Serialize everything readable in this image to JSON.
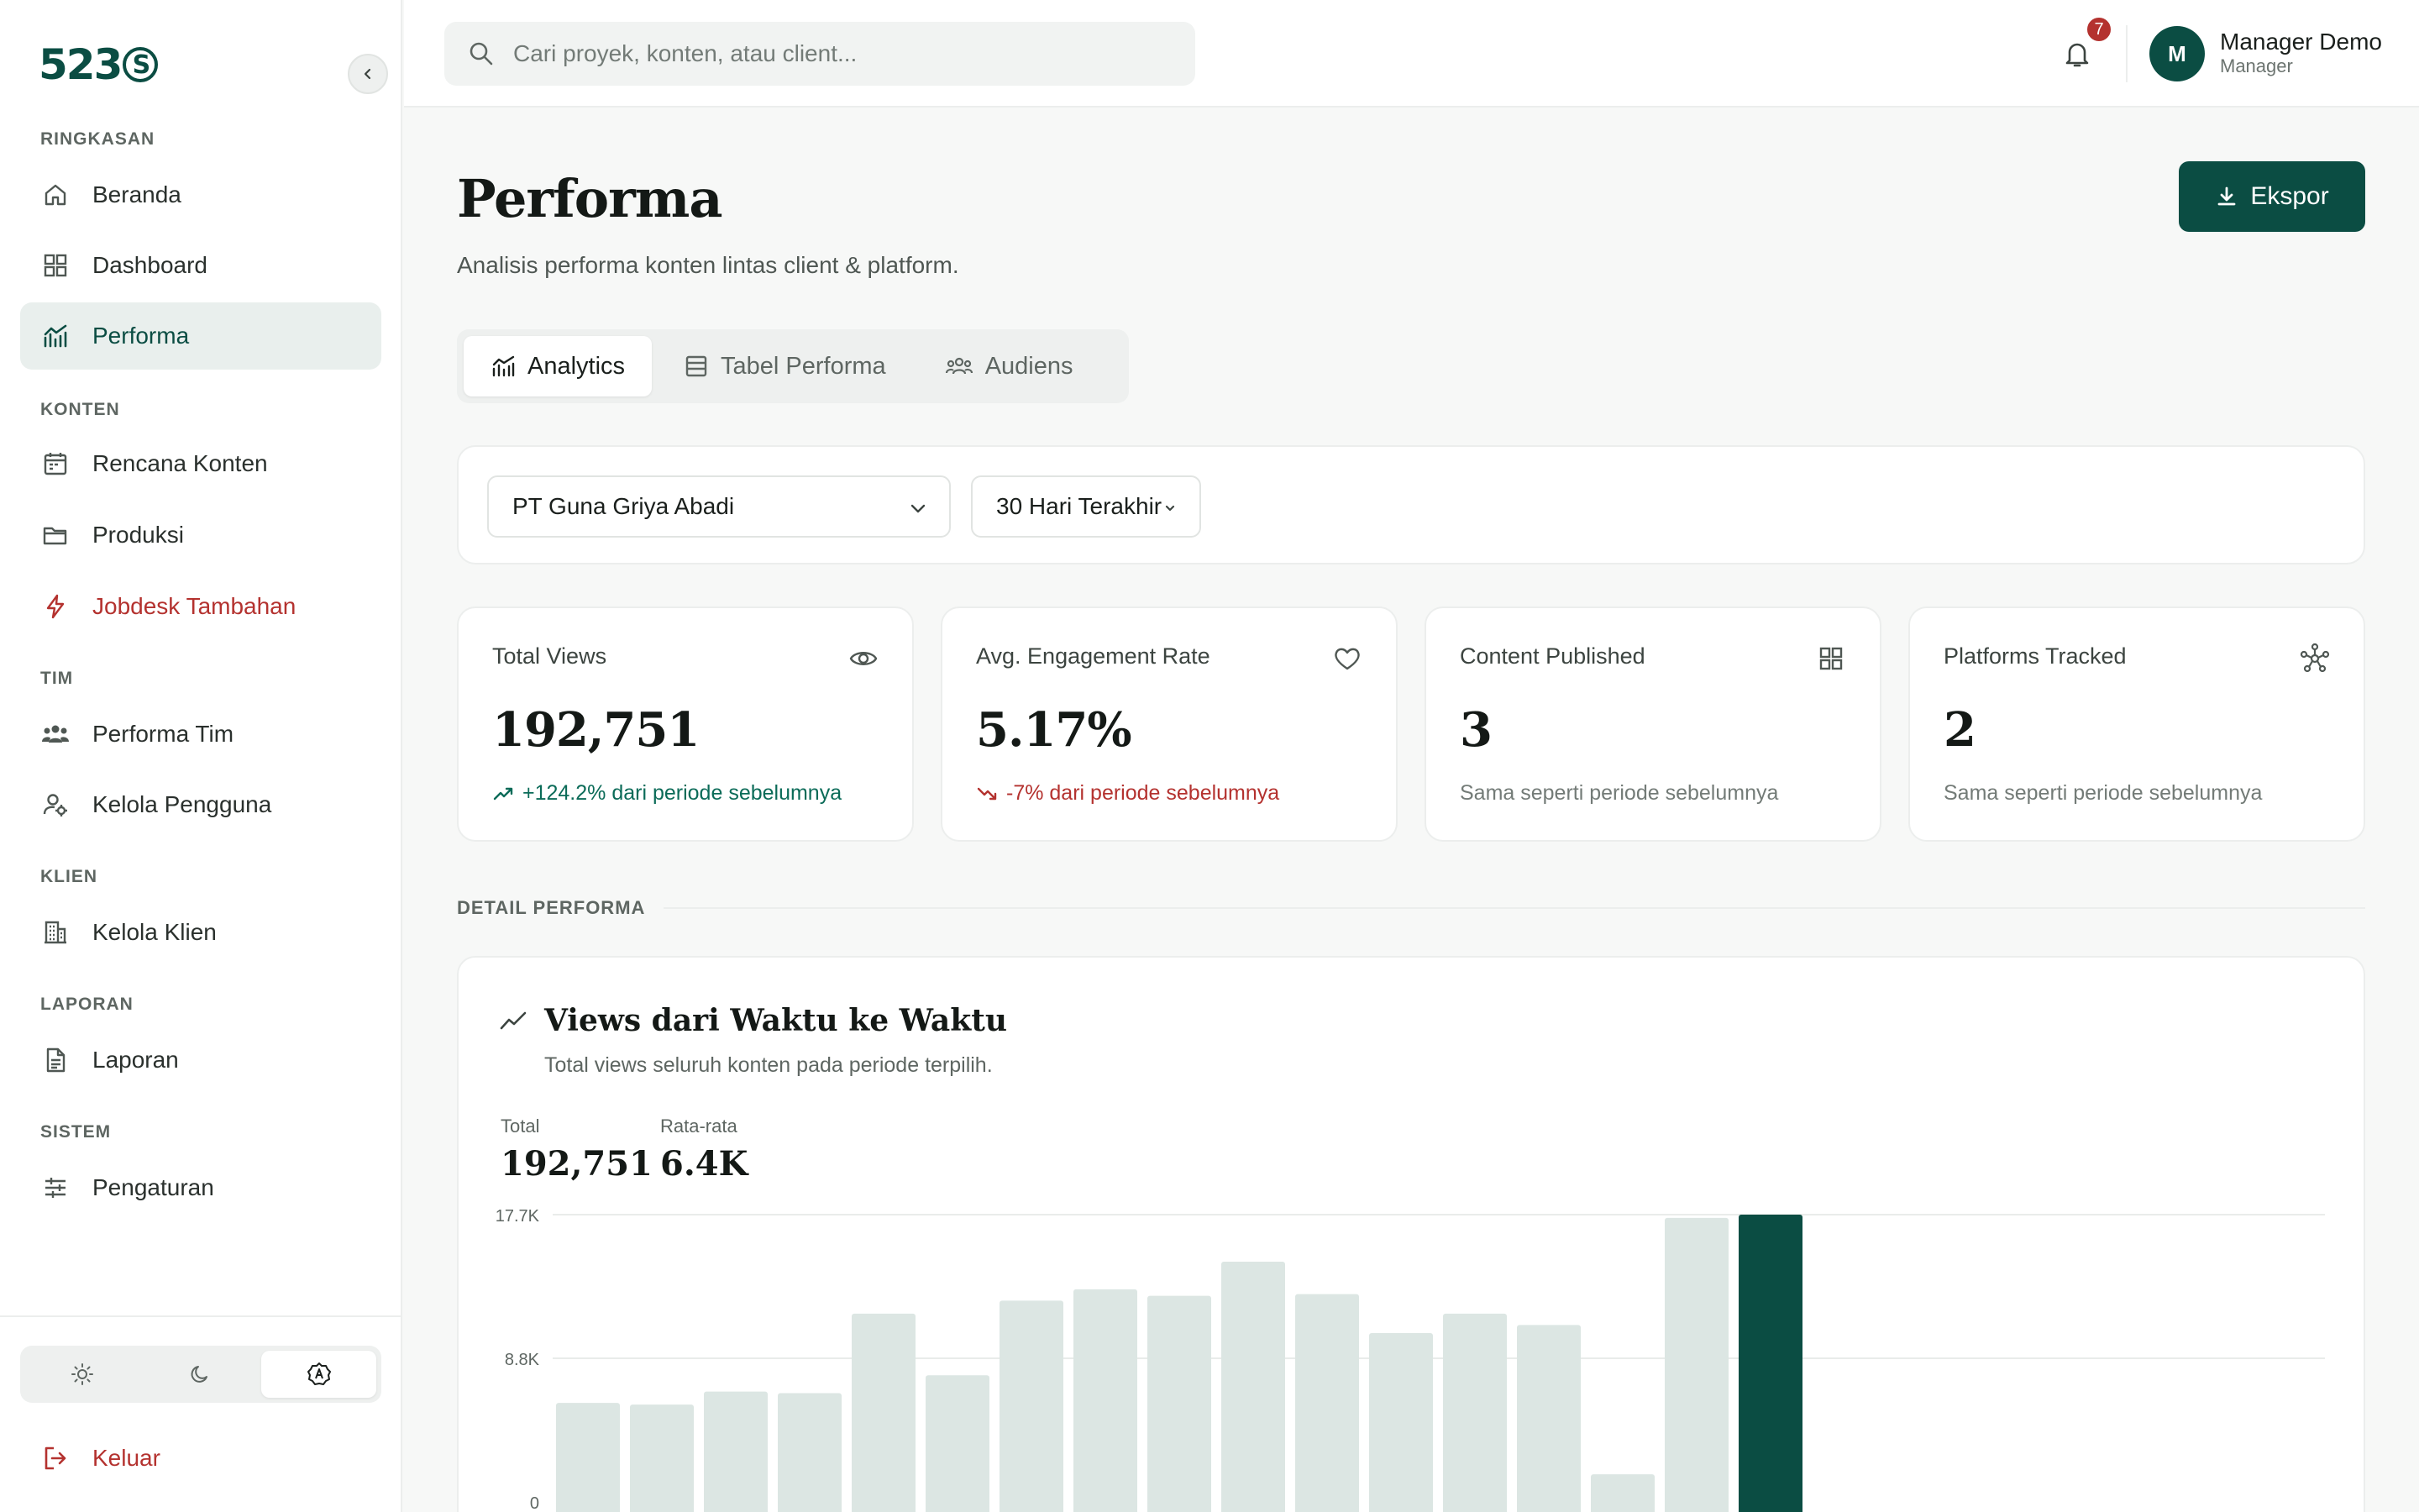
{
  "sidebar": {
    "logo": "523",
    "logo_mark": "S",
    "sections": {
      "summary": "RINGKASAN",
      "content": "KONTEN",
      "team": "TIM",
      "client": "KLIEN",
      "report": "LAPORAN",
      "system": "SISTEM"
    },
    "items": {
      "beranda": "Beranda",
      "dashboard": "Dashboard",
      "performa": "Performa",
      "rencana": "Rencana Konten",
      "produksi": "Produksi",
      "jobdesk": "Jobdesk Tambahan",
      "performa_tim": "Performa Tim",
      "kelola_pengguna": "Kelola Pengguna",
      "kelola_klien": "Kelola Klien",
      "laporan": "Laporan",
      "pengaturan": "Pengaturan"
    },
    "logout": "Keluar",
    "theme_selected": "auto"
  },
  "header": {
    "search_placeholder": "Cari proyek, konten, atau client...",
    "notification_count": "7",
    "avatar_initial": "M",
    "user_name": "Manager Demo",
    "user_role": "Manager"
  },
  "page": {
    "title": "Performa",
    "subtitle": "Analisis performa konten lintas client & platform.",
    "export_label": "Ekspor",
    "tabs": [
      "Analytics",
      "Tabel Performa",
      "Audiens"
    ],
    "active_tab": "Analytics"
  },
  "filters": {
    "client": "PT Guna Griya Abadi",
    "period": "30 Hari Terakhir"
  },
  "stats": [
    {
      "label": "Total Views",
      "value": "192,751",
      "delta": "+124.2% dari periode sebelumnya",
      "trend": "up",
      "icon": "eye-icon"
    },
    {
      "label": "Avg. Engagement Rate",
      "value": "5.17%",
      "delta": "-7% dari periode sebelumnya",
      "trend": "down",
      "icon": "heart-icon"
    },
    {
      "label": "Content Published",
      "value": "3",
      "delta": "Sama seperti periode sebelumnya",
      "trend": "flat",
      "icon": "grid-icon"
    },
    {
      "label": "Platforms Tracked",
      "value": "2",
      "delta": "Sama seperti periode sebelumnya",
      "trend": "flat",
      "icon": "network-icon"
    }
  ],
  "detail_label": "DETAIL PERFORMA",
  "chart_card": {
    "title": "Views dari Waktu ke Waktu",
    "subtitle": "Total views seluruh konten pada periode terpilih.",
    "total_label": "Total",
    "total_value": "192,751",
    "avg_label": "Rata-rata",
    "avg_value": "6.4K"
  },
  "chart_data": {
    "type": "bar",
    "title": "Views dari Waktu ke Waktu",
    "y_ticks": [
      "17.7K",
      "8.8K",
      "0"
    ],
    "ylim": [
      0,
      17700
    ],
    "values": [
      6100,
      6000,
      6800,
      6700,
      11600,
      7800,
      12400,
      13100,
      12700,
      14800,
      12800,
      10400,
      11600,
      10900,
      1700,
      17500,
      17700
    ],
    "highlight_index": 16,
    "colors": {
      "bar": "#dce6e3",
      "highlight": "#0b4d43",
      "grid": "#e9ecea"
    }
  },
  "colors": {
    "accent": "#0b4d43",
    "danger": "#b4322f",
    "up": "#0b6b58"
  }
}
